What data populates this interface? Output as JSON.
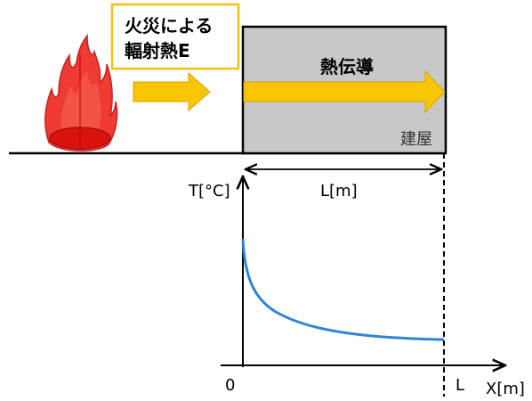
{
  "heat_label": {
    "line1": "火災による",
    "line2": "輻射熱E"
  },
  "building": {
    "conduction_label": "熱伝導",
    "name": "建屋"
  },
  "length_label": "L[m]",
  "axis": {
    "y_label": "T[°C]",
    "x_label": "X[m]",
    "origin_label": "0",
    "end_label": "L"
  },
  "colors": {
    "flame": "#e8201c",
    "arrow": "#f7c600",
    "building_fill": "#c8c8c8",
    "curve": "#2e86d1",
    "label_border": "#f4c20d"
  }
}
